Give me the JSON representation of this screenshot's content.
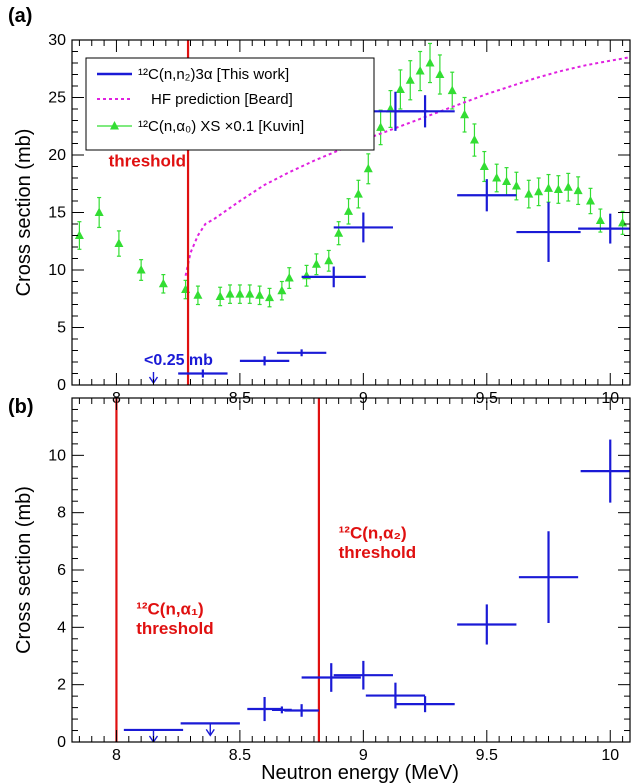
{
  "figure": {
    "xlabel": "Neutron energy (MeV)"
  },
  "chart_data": [
    {
      "panel_label": "(a)",
      "type": "scatter",
      "xlabel": "Neutron energy (MeV)",
      "ylabel": "Cross section (mb)",
      "xlim": [
        7.82,
        10.08
      ],
      "ylim": [
        0,
        30
      ],
      "x_ticks": [
        8,
        8.5,
        9,
        9.5,
        10
      ],
      "y_ticks": [
        0,
        5,
        10,
        15,
        20,
        25,
        30
      ],
      "grid": false,
      "legend_position": "top-left",
      "legend": [
        {
          "label": "¹²C(n,n₂)3α [This work]",
          "series": "this_work"
        },
        {
          "label": "HF prediction [Beard]",
          "series": "hf"
        },
        {
          "label": "¹²C(n,α₀) XS ×0.1 [Kuvin]",
          "series": "kuvin"
        }
      ],
      "colors": {
        "this_work": "#1a1ad6",
        "hf": "#e020e0",
        "kuvin": "#33dd33",
        "threshold": "#e01010",
        "frame": "#000000"
      },
      "series": [
        {
          "key": "kuvin",
          "marker": "triangle",
          "x": [
            7.85,
            7.93,
            8.01,
            8.1,
            8.19,
            8.28,
            8.33,
            8.42,
            8.46,
            8.5,
            8.54,
            8.58,
            8.62,
            8.67,
            8.7,
            8.77,
            8.81,
            8.86,
            8.9,
            8.94,
            8.98,
            9.02,
            9.07,
            9.11,
            9.15,
            9.19,
            9.23,
            9.27,
            9.31,
            9.36,
            9.41,
            9.45,
            9.49,
            9.54,
            9.58,
            9.62,
            9.67,
            9.71,
            9.75,
            9.79,
            9.83,
            9.87,
            9.92,
            9.96,
            10.05
          ],
          "y": [
            13.0,
            15.0,
            12.3,
            10.0,
            8.8,
            8.3,
            7.8,
            7.7,
            7.9,
            7.9,
            7.9,
            7.8,
            7.6,
            8.2,
            9.3,
            9.5,
            10.5,
            10.8,
            13.2,
            15.1,
            16.6,
            18.8,
            22.4,
            24.0,
            25.7,
            26.5,
            27.3,
            28.0,
            27.0,
            25.6,
            23.5,
            21.3,
            19.0,
            18.0,
            17.7,
            17.3,
            16.6,
            16.8,
            17.1,
            17.0,
            17.2,
            16.9,
            16.0,
            14.3,
            14.1
          ],
          "yerr": [
            1.2,
            1.3,
            1.1,
            0.9,
            0.8,
            0.8,
            0.8,
            0.8,
            0.8,
            0.8,
            0.8,
            0.8,
            0.8,
            0.8,
            0.9,
            0.9,
            0.9,
            0.9,
            1.0,
            1.1,
            1.2,
            1.3,
            1.5,
            1.6,
            1.7,
            1.7,
            1.7,
            1.7,
            1.7,
            1.6,
            1.5,
            1.4,
            1.3,
            1.2,
            1.2,
            1.2,
            1.2,
            1.2,
            1.2,
            1.2,
            1.2,
            1.2,
            1.1,
            1.0,
            1.0
          ]
        },
        {
          "key": "hf",
          "line": "dotted",
          "x": [
            8.28,
            8.3,
            8.33,
            8.36,
            8.4,
            8.5,
            8.6,
            8.7,
            8.8,
            8.9,
            9.0,
            9.1,
            9.2,
            9.3,
            9.4,
            9.5,
            9.6,
            9.7,
            9.8,
            9.9,
            10.0,
            10.08
          ],
          "y": [
            9.5,
            11.5,
            13.0,
            14.0,
            14.5,
            16.0,
            17.4,
            18.5,
            19.5,
            20.4,
            21.3,
            22.1,
            22.9,
            23.7,
            24.5,
            25.3,
            26.0,
            26.7,
            27.3,
            27.8,
            28.2,
            28.5
          ]
        },
        {
          "key": "this_work",
          "marker": "cross",
          "points": [
            {
              "x": 8.35,
              "y": 1.0,
              "xerr": 0.1,
              "yerr": 0.35
            },
            {
              "x": 8.6,
              "y": 2.1,
              "xerr": 0.1,
              "yerr": 0.4
            },
            {
              "x": 8.75,
              "y": 2.8,
              "xerr": 0.1,
              "yerr": 0.3
            },
            {
              "x": 8.88,
              "y": 9.4,
              "xerr": 0.13,
              "yerr": 0.9
            },
            {
              "x": 9.0,
              "y": 13.7,
              "xerr": 0.12,
              "yerr": 1.3
            },
            {
              "x": 9.13,
              "y": 23.8,
              "xerr": 0.13,
              "yerr": 1.7
            },
            {
              "x": 9.25,
              "y": 23.8,
              "xerr": 0.12,
              "yerr": 1.4
            },
            {
              "x": 9.5,
              "y": 16.5,
              "xerr": 0.12,
              "yerr": 1.4
            },
            {
              "x": 9.75,
              "y": 13.3,
              "xerr": 0.13,
              "yerr": 2.6
            },
            {
              "x": 10.0,
              "y": 13.6,
              "xerr": 0.13,
              "yerr": 1.3
            }
          ]
        }
      ],
      "upper_limits": [
        {
          "x": 8.15,
          "y": 0.25,
          "label": "<0.25 mb"
        }
      ],
      "thresholds": [
        {
          "x": 8.29,
          "label_lines": [
            "¹²C(n,n₂)3α",
            "threshold"
          ],
          "label_y": 20.7
        }
      ]
    },
    {
      "panel_label": "(b)",
      "type": "scatter",
      "xlabel": "Neutron energy (MeV)",
      "ylabel": "Cross section (mb)",
      "xlim": [
        7.82,
        10.08
      ],
      "ylim": [
        0,
        12
      ],
      "x_ticks": [
        8,
        8.5,
        9,
        9.5,
        10
      ],
      "y_ticks": [
        0,
        2,
        4,
        6,
        8,
        10
      ],
      "grid": false,
      "colors": {
        "points": "#1a1ad6",
        "threshold": "#e01010",
        "frame": "#000000"
      },
      "series": [
        {
          "key": "points",
          "marker": "cross",
          "points": [
            {
              "x": 8.6,
              "y": 1.15,
              "xerr": 0.07,
              "yerr": 0.42
            },
            {
              "x": 8.67,
              "y": 1.12,
              "xerr": 0.04,
              "yerr": 0.12
            },
            {
              "x": 8.75,
              "y": 1.1,
              "xerr": 0.07,
              "yerr": 0.22
            },
            {
              "x": 8.87,
              "y": 2.25,
              "xerr": 0.12,
              "yerr": 0.5
            },
            {
              "x": 9.0,
              "y": 2.33,
              "xerr": 0.12,
              "yerr": 0.5
            },
            {
              "x": 9.13,
              "y": 1.62,
              "xerr": 0.12,
              "yerr": 0.45
            },
            {
              "x": 9.25,
              "y": 1.32,
              "xerr": 0.12,
              "yerr": 0.28
            },
            {
              "x": 9.5,
              "y": 4.1,
              "xerr": 0.12,
              "yerr": 0.7
            },
            {
              "x": 9.75,
              "y": 5.75,
              "xerr": 0.12,
              "yerr": 1.6
            },
            {
              "x": 10.0,
              "y": 9.45,
              "xerr": 0.12,
              "yerr": 1.1
            }
          ]
        }
      ],
      "upper_limits": [
        {
          "x": 8.15,
          "xerr": 0.12,
          "y": 0.42
        },
        {
          "x": 8.38,
          "xerr": 0.12,
          "y": 0.65
        }
      ],
      "thresholds": [
        {
          "x": 8.0,
          "label_lines": [
            "¹²C(n,α₁)",
            "threshold"
          ],
          "label_x": 8.08,
          "label_y": 4.45
        },
        {
          "x": 8.82,
          "label_lines": [
            "¹²C(n,α₂)",
            "threshold"
          ],
          "label_x": 8.9,
          "label_y": 7.1
        }
      ]
    }
  ]
}
